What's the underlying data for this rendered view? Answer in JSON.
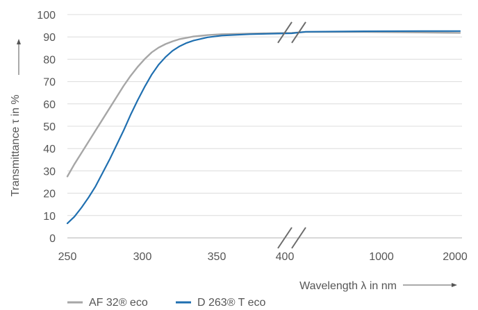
{
  "chart_data": {
    "type": "line",
    "title": "",
    "xlabel": "Wavelength λ in nm",
    "ylabel": "Transmittance τ in %",
    "x_ticks": [
      "250",
      "300",
      "350",
      "400",
      "1000",
      "2000"
    ],
    "y_ticks": [
      "0",
      "10",
      "20",
      "30",
      "40",
      "50",
      "60",
      "70",
      "80",
      "90",
      "100"
    ],
    "ylim": [
      0,
      100
    ],
    "x_axis": "broken between 400 nm and 1000 nm",
    "grid": "horizontal",
    "legend_position": "bottom-left",
    "series": [
      {
        "name": "AF 32® eco",
        "color": "#a6a6a6",
        "points": [
          [
            250,
            27.5
          ],
          [
            255,
            33
          ],
          [
            260,
            38
          ],
          [
            265,
            43
          ],
          [
            270,
            48
          ],
          [
            275,
            53
          ],
          [
            280,
            58
          ],
          [
            285,
            63
          ],
          [
            290,
            68
          ],
          [
            295,
            72.5
          ],
          [
            300,
            76.5
          ],
          [
            305,
            80
          ],
          [
            310,
            83
          ],
          [
            315,
            85.2
          ],
          [
            320,
            86.8
          ],
          [
            325,
            88
          ],
          [
            330,
            89
          ],
          [
            340,
            90.2
          ],
          [
            350,
            90.8
          ],
          [
            360,
            91.2
          ],
          [
            380,
            91.5
          ],
          [
            400,
            91.7
          ],
          [
            410,
            91.8
          ],
          [
            650,
            92.2
          ],
          [
            1000,
            92.2
          ],
          [
            1500,
            92.0
          ],
          [
            2000,
            91.8
          ]
        ]
      },
      {
        "name": "D 263® T eco",
        "color": "#1f6fb0",
        "points": [
          [
            250,
            6.5
          ],
          [
            255,
            9.5
          ],
          [
            260,
            13.5
          ],
          [
            265,
            18
          ],
          [
            270,
            23
          ],
          [
            275,
            29
          ],
          [
            280,
            35
          ],
          [
            285,
            41.5
          ],
          [
            290,
            48
          ],
          [
            295,
            55
          ],
          [
            300,
            61.5
          ],
          [
            305,
            67.5
          ],
          [
            310,
            73
          ],
          [
            315,
            77.5
          ],
          [
            320,
            81
          ],
          [
            325,
            83.8
          ],
          [
            330,
            85.8
          ],
          [
            335,
            87.3
          ],
          [
            340,
            88.4
          ],
          [
            350,
            89.8
          ],
          [
            360,
            90.6
          ],
          [
            380,
            91.2
          ],
          [
            400,
            91.5
          ],
          [
            410,
            91.6
          ],
          [
            650,
            92.3
          ],
          [
            1000,
            92.5
          ],
          [
            1500,
            92.6
          ],
          [
            2000,
            92.6
          ]
        ]
      }
    ]
  }
}
